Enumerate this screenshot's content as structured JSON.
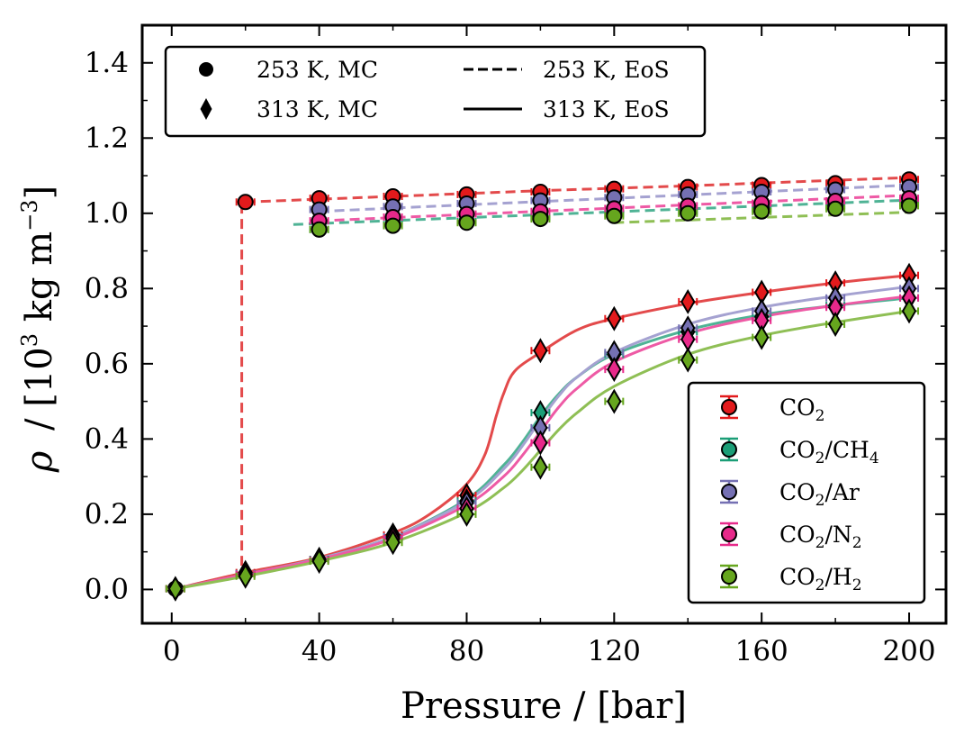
{
  "chart_data": {
    "type": "line",
    "title": "",
    "xlabel": "Pressure / [bar]",
    "ylabel": "ρ / [10³ kg m⁻³]",
    "ylabel_parts": {
      "rho": "ρ",
      "slash": "/ [10",
      "exp": "3",
      "units": " kg m",
      "exp2": "−3",
      "close": "]"
    },
    "xlim": [
      -8,
      210
    ],
    "ylim": [
      -0.09,
      1.5
    ],
    "x_ticks": [
      0,
      40,
      80,
      120,
      160,
      200
    ],
    "x_tick_labels": [
      "0",
      "40",
      "80",
      "120",
      "160",
      "200"
    ],
    "y_ticks": [
      0.0,
      0.2,
      0.4,
      0.6,
      0.8,
      1.0,
      1.2,
      1.4
    ],
    "y_tick_labels": [
      "0.0",
      "0.2",
      "0.4",
      "0.6",
      "0.8",
      "1.0",
      "1.2",
      "1.4"
    ],
    "grid": false,
    "legend_style": {
      "position": "top-left",
      "entries": [
        {
          "label": "253 K, MC",
          "marker": "circle"
        },
        {
          "label": "313 K, MC",
          "marker": "diamond"
        },
        {
          "label": "253 K, EoS",
          "line": "dashed"
        },
        {
          "label": "313 K, EoS",
          "line": "solid"
        }
      ]
    },
    "legend_series": {
      "position": "bottom-right",
      "entries": [
        {
          "base": "CO",
          "sub": "2",
          "rest": []
        },
        {
          "base": "CO",
          "sub": "2",
          "rest": [
            {
              "t": "/CH",
              "s": "4"
            }
          ]
        },
        {
          "base": "CO",
          "sub": "2",
          "rest": [
            {
              "t": "/Ar",
              "s": ""
            }
          ]
        },
        {
          "base": "CO",
          "sub": "2",
          "rest": [
            {
              "t": "/N",
              "s": "2"
            }
          ]
        },
        {
          "base": "CO",
          "sub": "2",
          "rest": [
            {
              "t": "/H",
              "s": "2"
            }
          ]
        }
      ]
    },
    "series": [
      {
        "name": "CO2",
        "color": "#e31a1c",
        "line_color": "#e34a4b",
        "mc_253": {
          "x": [
            1,
            20,
            40,
            60,
            80,
            100,
            120,
            140,
            160,
            180,
            200
          ],
          "y": [
            0.002,
            1.03,
            1.04,
            1.045,
            1.05,
            1.057,
            1.065,
            1.07,
            1.075,
            1.08,
            1.09
          ]
        },
        "mc_313": {
          "x": [
            1,
            20,
            40,
            60,
            80,
            100,
            120,
            140,
            160,
            180,
            200
          ],
          "y": [
            0.002,
            0.045,
            0.08,
            0.145,
            0.25,
            0.635,
            0.72,
            0.765,
            0.79,
            0.815,
            0.835
          ]
        },
        "eos_253": {
          "x": [
            1,
            10,
            19,
            19,
            20,
            60,
            100,
            140,
            200
          ],
          "y": [
            0.002,
            0.02,
            0.04,
            1.03,
            1.03,
            1.045,
            1.06,
            1.073,
            1.095
          ]
        },
        "eos_313": {
          "x": [
            1,
            20,
            40,
            60,
            70,
            80,
            85,
            88,
            90,
            93,
            100,
            110,
            120,
            140,
            160,
            180,
            200
          ],
          "y": [
            0.002,
            0.045,
            0.085,
            0.15,
            0.2,
            0.28,
            0.36,
            0.46,
            0.52,
            0.58,
            0.63,
            0.69,
            0.72,
            0.76,
            0.79,
            0.815,
            0.835
          ]
        }
      },
      {
        "name": "CO2/CH4",
        "color": "#1b9e77",
        "line_color": "#4fb395",
        "mc_253": {
          "x": [
            40,
            60,
            80,
            100,
            120,
            140,
            160,
            180,
            200
          ],
          "y": [
            0.957,
            0.97,
            0.978,
            0.99,
            0.998,
            1.005,
            1.012,
            1.02,
            1.028
          ]
        },
        "mc_313": {
          "x": [
            1,
            20,
            40,
            60,
            80,
            100,
            120,
            140,
            160,
            180,
            200
          ],
          "y": [
            0.002,
            0.042,
            0.08,
            0.14,
            0.235,
            0.47,
            0.625,
            0.685,
            0.725,
            0.755,
            0.775
          ]
        },
        "eos_253": {
          "x": [
            33,
            200
          ],
          "y": [
            0.97,
            1.035
          ]
        },
        "eos_313": {
          "x": [
            1,
            20,
            40,
            60,
            80,
            90,
            95,
            100,
            105,
            110,
            120,
            140,
            160,
            180,
            200
          ],
          "y": [
            0.002,
            0.04,
            0.082,
            0.14,
            0.24,
            0.33,
            0.39,
            0.46,
            0.52,
            0.565,
            0.625,
            0.69,
            0.73,
            0.755,
            0.775
          ]
        }
      },
      {
        "name": "CO2/Ar",
        "color": "#7570b3",
        "line_color": "#a5a2d1",
        "mc_253": {
          "x": [
            40,
            60,
            80,
            100,
            120,
            140,
            160,
            180,
            200
          ],
          "y": [
            1.01,
            1.018,
            1.026,
            1.034,
            1.042,
            1.05,
            1.057,
            1.063,
            1.07
          ]
        },
        "mc_313": {
          "x": [
            1,
            20,
            40,
            60,
            80,
            100,
            120,
            140,
            160,
            180,
            200
          ],
          "y": [
            0.002,
            0.042,
            0.078,
            0.14,
            0.23,
            0.43,
            0.63,
            0.695,
            0.74,
            0.775,
            0.8
          ]
        },
        "eos_253": {
          "x": [
            40,
            200
          ],
          "y": [
            1.005,
            1.075
          ]
        },
        "eos_313": {
          "x": [
            1,
            20,
            40,
            60,
            80,
            90,
            95,
            100,
            105,
            110,
            120,
            140,
            160,
            180,
            200
          ],
          "y": [
            0.002,
            0.04,
            0.082,
            0.14,
            0.235,
            0.32,
            0.38,
            0.45,
            0.515,
            0.565,
            0.63,
            0.705,
            0.75,
            0.78,
            0.805
          ]
        }
      },
      {
        "name": "CO2/N2",
        "color": "#e7298a",
        "line_color": "#ee5aa5",
        "mc_253": {
          "x": [
            40,
            60,
            80,
            100,
            120,
            140,
            160,
            180,
            200
          ],
          "y": [
            0.98,
            0.99,
            0.998,
            1.005,
            1.013,
            1.02,
            1.027,
            1.033,
            1.04
          ]
        },
        "mc_313": {
          "x": [
            1,
            20,
            40,
            60,
            80,
            100,
            120,
            140,
            160,
            180,
            200
          ],
          "y": [
            0.002,
            0.04,
            0.078,
            0.135,
            0.215,
            0.39,
            0.585,
            0.665,
            0.715,
            0.75,
            0.775
          ]
        },
        "eos_253": {
          "x": [
            40,
            200
          ],
          "y": [
            0.98,
            1.048
          ]
        },
        "eos_313": {
          "x": [
            1,
            20,
            40,
            60,
            80,
            90,
            95,
            100,
            105,
            110,
            120,
            140,
            160,
            180,
            200
          ],
          "y": [
            0.002,
            0.04,
            0.08,
            0.135,
            0.225,
            0.3,
            0.355,
            0.42,
            0.485,
            0.535,
            0.605,
            0.68,
            0.725,
            0.755,
            0.78
          ]
        }
      },
      {
        "name": "CO2/H2",
        "color": "#66a61e",
        "line_color": "#8fbf55",
        "mc_253": {
          "x": [
            40,
            60,
            80,
            100,
            120,
            140,
            160,
            180,
            200
          ],
          "y": [
            0.957,
            0.967,
            0.975,
            0.985,
            0.993,
            1.0,
            1.005,
            1.012,
            1.02
          ]
        },
        "mc_313": {
          "x": [
            1,
            20,
            40,
            60,
            80,
            100,
            120,
            140,
            160,
            180,
            200
          ],
          "y": [
            0.002,
            0.035,
            0.075,
            0.125,
            0.2,
            0.325,
            0.5,
            0.61,
            0.67,
            0.705,
            0.74
          ]
        },
        "eos_253": {
          "x": [
            120,
            200
          ],
          "y": [
            0.975,
            1.003
          ]
        },
        "eos_313": {
          "x": [
            1,
            20,
            40,
            60,
            80,
            90,
            95,
            100,
            105,
            110,
            120,
            140,
            160,
            180,
            200
          ],
          "y": [
            0.002,
            0.035,
            0.075,
            0.125,
            0.205,
            0.27,
            0.315,
            0.37,
            0.425,
            0.47,
            0.54,
            0.625,
            0.675,
            0.71,
            0.74
          ]
        }
      }
    ]
  }
}
